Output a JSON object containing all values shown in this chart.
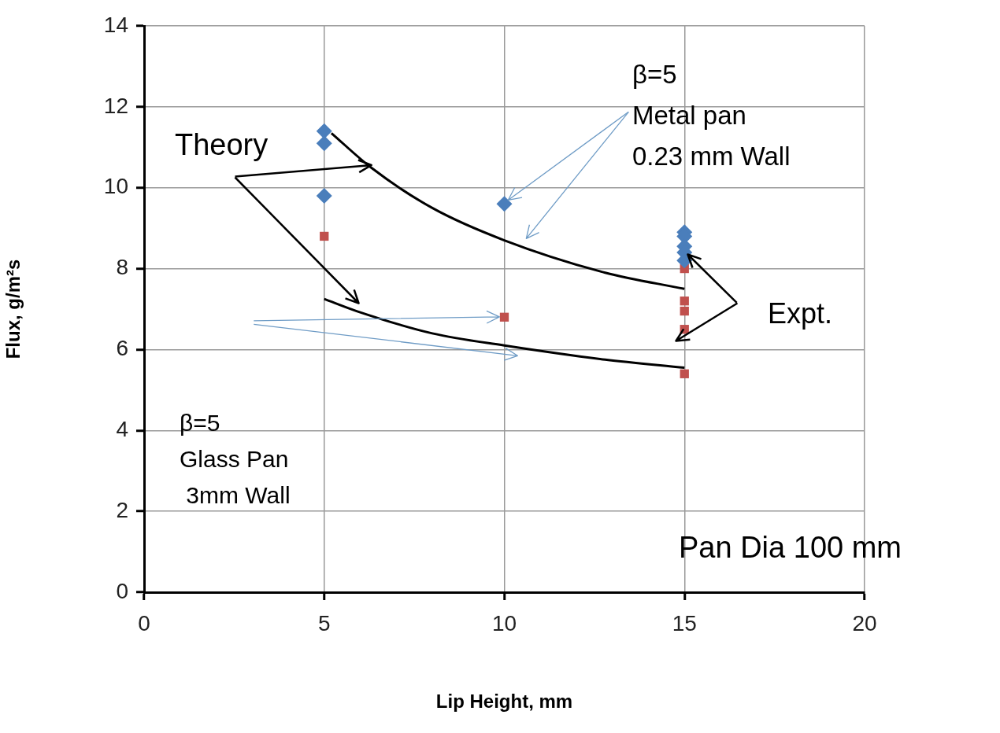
{
  "chart_data": {
    "type": "scatter",
    "xlabel": "Lip Height, mm",
    "ylabel": "Flux, g/m²s",
    "xlim": [
      0,
      20
    ],
    "xticks": [
      0,
      5,
      10,
      15,
      20
    ],
    "ylim": [
      0,
      14
    ],
    "yticks": [
      0,
      2,
      4,
      6,
      8,
      10,
      12,
      14
    ],
    "grid": true,
    "legend": false,
    "series": [
      {
        "type": "scatter",
        "marker": "diamond",
        "color": "#4a7ebb",
        "x": [
          5,
          5,
          5,
          10,
          15,
          15,
          15,
          15,
          15
        ],
        "values": [
          11.4,
          11.1,
          9.8,
          9.6,
          8.9,
          8.8,
          8.55,
          8.4,
          8.2
        ]
      },
      {
        "type": "scatter",
        "marker": "square",
        "color": "#c0504d",
        "x": [
          5,
          10,
          15,
          15,
          15,
          15,
          15
        ],
        "values": [
          8.8,
          6.8,
          8.0,
          7.2,
          6.95,
          6.5,
          5.4
        ]
      },
      {
        "type": "line",
        "marker": "none",
        "line_style": "solid",
        "color": "#000000",
        "x": [
          5.2,
          6.3,
          8,
          10,
          12.8,
          15
        ],
        "values": [
          11.35,
          10.5,
          9.5,
          8.7,
          7.9,
          7.5
        ]
      },
      {
        "type": "line",
        "marker": "none",
        "line_style": "solid",
        "color": "#000000",
        "x": [
          5,
          5.9,
          8,
          10,
          12.8,
          15
        ],
        "values": [
          7.25,
          6.95,
          6.4,
          6.1,
          5.75,
          5.55
        ]
      }
    ],
    "annotations": [
      {
        "text": "Theory",
        "x": 6.3,
        "y": 10.55
      },
      {
        "text": "β=5\nMetal pan\n0.23 mm Wall",
        "x": 10.1,
        "y": 9.7
      },
      {
        "text": "Expt.",
        "x": 15.1,
        "y": 8.35
      },
      "β=5\nGlass Pan\n 3mm Wall",
      "Pan Dia 100 mm"
    ]
  }
}
